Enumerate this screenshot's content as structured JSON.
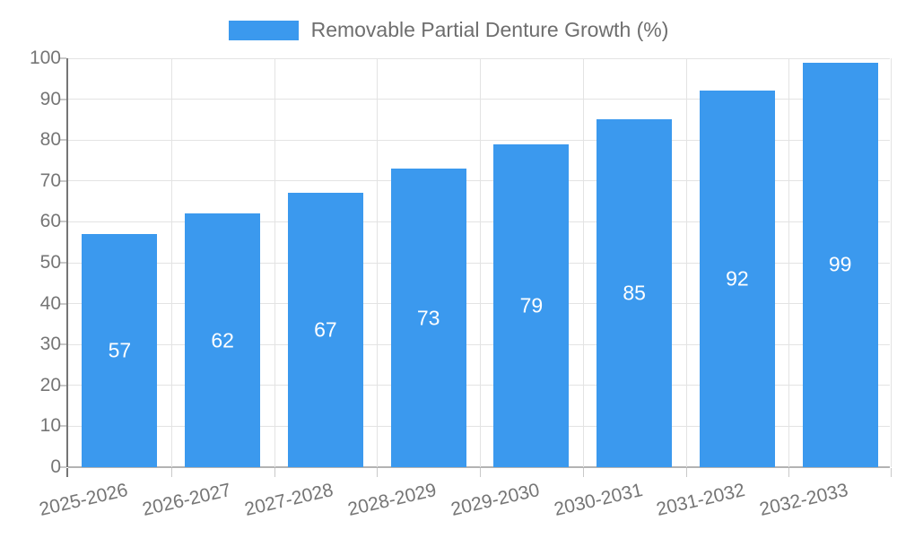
{
  "legend": {
    "label": "Removable Partial Denture Growth (%)",
    "swatch_color": "#3b99ee"
  },
  "chart_data": {
    "type": "bar",
    "title": "Removable Partial Denture Growth (%)",
    "categories": [
      "2025-2026",
      "2026-2027",
      "2027-2028",
      "2028-2029",
      "2029-2030",
      "2030-2031",
      "2031-2032",
      "2032-2033"
    ],
    "values": [
      57,
      62,
      67,
      73,
      79,
      85,
      92,
      99
    ],
    "xlabel": "",
    "ylabel": "",
    "ylim": [
      0,
      100
    ],
    "yticks": [
      0,
      10,
      20,
      30,
      40,
      50,
      60,
      70,
      80,
      90,
      100
    ],
    "grid": true,
    "legend_position": "top-center",
    "bar_color": "#3b99ee",
    "value_label_color": "#ffffff",
    "gridline_color": "#e3e3e3",
    "axis_line_color": "#757575",
    "baseline_color": "#b3b3b3",
    "tick_label_color": "#757575"
  }
}
